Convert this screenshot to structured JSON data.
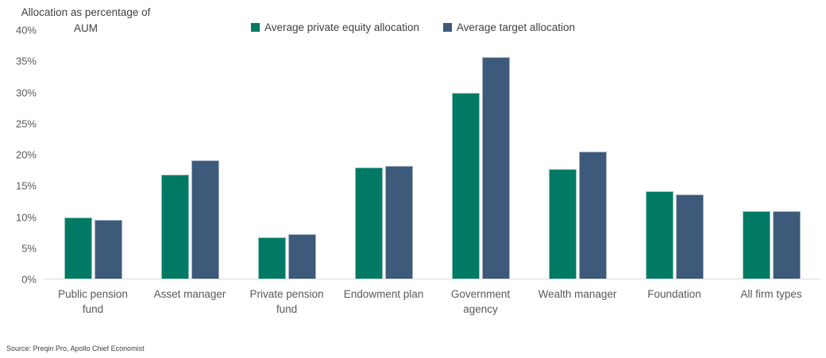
{
  "title": {
    "line1": "Allocation as percentage of",
    "line2": "AUM"
  },
  "legend": {
    "items": [
      {
        "label": "Average private equity allocation",
        "color": "#007a64"
      },
      {
        "label": "Average target allocation",
        "color": "#3d5a7a"
      }
    ]
  },
  "source": "Source: Preqin Pro, Apollo Chief Economist",
  "chart_data": {
    "type": "bar",
    "title": "Allocation as percentage of AUM",
    "categories": [
      "Public pension fund",
      "Asset manager",
      "Private pension fund",
      "Endowment plan",
      "Government agency",
      "Wealth manager",
      "Foundation",
      "All firm types"
    ],
    "series": [
      {
        "name": "Average private equity allocation",
        "color": "#007a64",
        "values": [
          9.9,
          16.8,
          6.6,
          17.9,
          29.9,
          17.7,
          14.1,
          10.9
        ]
      },
      {
        "name": "Average target allocation",
        "color": "#3d5a7a",
        "values": [
          9.5,
          19.0,
          7.2,
          18.2,
          35.7,
          20.5,
          13.6,
          10.9
        ]
      }
    ],
    "xlabel": "",
    "ylabel": "Allocation as percentage of AUM",
    "ylim": [
      0,
      40
    ],
    "ytick_step": 5,
    "ytick_labels": [
      "0%",
      "5%",
      "10%",
      "15%",
      "20%",
      "25%",
      "30%",
      "35%",
      "40%"
    ],
    "grid": false,
    "legend_position": "top"
  }
}
